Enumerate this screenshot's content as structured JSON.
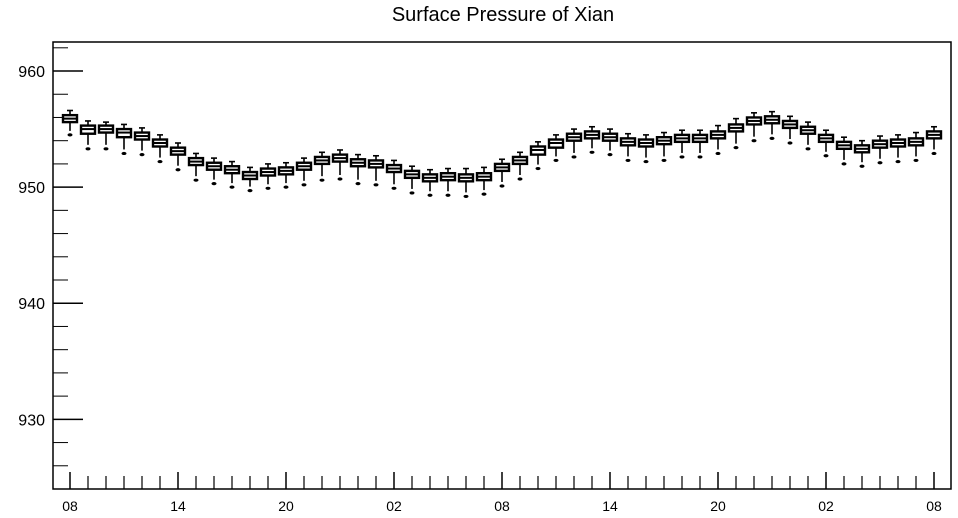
{
  "chart_data": {
    "type": "boxplot",
    "title": "Surface Pressure of Xian",
    "xlabel": "",
    "ylabel": "",
    "ylim": [
      924,
      962.5
    ],
    "y_ticks": [
      930,
      940,
      950,
      960
    ],
    "y_tick_labels": [
      "930",
      "940",
      "950",
      "960"
    ],
    "x_tick_labels": [
      "08",
      "14",
      "20",
      "02",
      "08",
      "14",
      "20",
      "02",
      "08"
    ],
    "x_tick_label_hours": [
      0,
      6,
      12,
      18,
      24,
      30,
      36,
      42,
      48
    ],
    "x_range_hours": [
      0,
      48
    ],
    "grid": false,
    "series": [
      {
        "boxes": [
          {
            "hour": 0,
            "min": 954.5,
            "q1": 955.6,
            "median": 955.9,
            "q3": 956.2,
            "max": 956.6
          },
          {
            "hour": 1,
            "min": 953.3,
            "q1": 954.6,
            "median": 955.0,
            "q3": 955.3,
            "max": 955.7
          },
          {
            "hour": 2,
            "min": 953.3,
            "q1": 954.7,
            "median": 955.0,
            "q3": 955.3,
            "max": 955.6
          },
          {
            "hour": 3,
            "min": 952.9,
            "q1": 954.3,
            "median": 954.7,
            "q3": 955.0,
            "max": 955.4
          },
          {
            "hour": 4,
            "min": 952.8,
            "q1": 954.1,
            "median": 954.4,
            "q3": 954.7,
            "max": 955.1
          },
          {
            "hour": 5,
            "min": 952.2,
            "q1": 953.5,
            "median": 953.8,
            "q3": 954.1,
            "max": 954.5
          },
          {
            "hour": 6,
            "min": 951.5,
            "q1": 952.8,
            "median": 953.1,
            "q3": 953.4,
            "max": 953.8
          },
          {
            "hour": 7,
            "min": 950.6,
            "q1": 951.9,
            "median": 952.2,
            "q3": 952.5,
            "max": 952.9
          },
          {
            "hour": 8,
            "min": 950.3,
            "q1": 951.5,
            "median": 951.8,
            "q3": 952.1,
            "max": 952.5
          },
          {
            "hour": 9,
            "min": 950.0,
            "q1": 951.2,
            "median": 951.5,
            "q3": 951.8,
            "max": 952.2
          },
          {
            "hour": 10,
            "min": 949.7,
            "q1": 950.7,
            "median": 951.0,
            "q3": 951.3,
            "max": 951.7
          },
          {
            "hour": 11,
            "min": 949.9,
            "q1": 951.0,
            "median": 951.3,
            "q3": 951.6,
            "max": 952.0
          },
          {
            "hour": 12,
            "min": 950.0,
            "q1": 951.1,
            "median": 951.4,
            "q3": 951.7,
            "max": 952.1
          },
          {
            "hour": 13,
            "min": 950.2,
            "q1": 951.5,
            "median": 951.8,
            "q3": 952.1,
            "max": 952.5
          },
          {
            "hour": 14,
            "min": 950.6,
            "q1": 952.0,
            "median": 952.3,
            "q3": 952.6,
            "max": 953.0
          },
          {
            "hour": 15,
            "min": 950.7,
            "q1": 952.2,
            "median": 952.5,
            "q3": 952.8,
            "max": 953.2
          },
          {
            "hour": 16,
            "min": 950.3,
            "q1": 951.8,
            "median": 952.1,
            "q3": 952.4,
            "max": 952.8
          },
          {
            "hour": 17,
            "min": 950.2,
            "q1": 951.7,
            "median": 952.0,
            "q3": 952.3,
            "max": 952.7
          },
          {
            "hour": 18,
            "min": 949.9,
            "q1": 951.3,
            "median": 951.6,
            "q3": 951.9,
            "max": 952.3
          },
          {
            "hour": 19,
            "min": 949.5,
            "q1": 950.8,
            "median": 951.1,
            "q3": 951.4,
            "max": 951.8
          },
          {
            "hour": 20,
            "min": 949.3,
            "q1": 950.5,
            "median": 950.8,
            "q3": 951.1,
            "max": 951.5
          },
          {
            "hour": 21,
            "min": 949.3,
            "q1": 950.6,
            "median": 950.9,
            "q3": 951.2,
            "max": 951.6
          },
          {
            "hour": 22,
            "min": 949.2,
            "q1": 950.5,
            "median": 950.8,
            "q3": 951.1,
            "max": 951.6
          },
          {
            "hour": 23,
            "min": 949.4,
            "q1": 950.6,
            "median": 950.9,
            "q3": 951.2,
            "max": 951.7
          },
          {
            "hour": 24,
            "min": 950.1,
            "q1": 951.4,
            "median": 951.7,
            "q3": 952.0,
            "max": 952.4
          },
          {
            "hour": 25,
            "min": 950.7,
            "q1": 952.0,
            "median": 952.3,
            "q3": 952.6,
            "max": 953.0
          },
          {
            "hour": 26,
            "min": 951.6,
            "q1": 952.8,
            "median": 953.2,
            "q3": 953.5,
            "max": 953.9
          },
          {
            "hour": 27,
            "min": 952.3,
            "q1": 953.4,
            "median": 953.8,
            "q3": 954.1,
            "max": 954.5
          },
          {
            "hour": 28,
            "min": 952.6,
            "q1": 954.0,
            "median": 954.3,
            "q3": 954.6,
            "max": 955.0
          },
          {
            "hour": 29,
            "min": 953.0,
            "q1": 954.2,
            "median": 954.5,
            "q3": 954.8,
            "max": 955.2
          },
          {
            "hour": 30,
            "min": 952.8,
            "q1": 954.0,
            "median": 954.3,
            "q3": 954.6,
            "max": 955.0
          },
          {
            "hour": 31,
            "min": 952.3,
            "q1": 953.6,
            "median": 953.9,
            "q3": 954.2,
            "max": 954.6
          },
          {
            "hour": 32,
            "min": 952.2,
            "q1": 953.5,
            "median": 953.8,
            "q3": 954.1,
            "max": 954.5
          },
          {
            "hour": 33,
            "min": 952.3,
            "q1": 953.7,
            "median": 954.0,
            "q3": 954.3,
            "max": 954.7
          },
          {
            "hour": 34,
            "min": 952.6,
            "q1": 953.9,
            "median": 954.2,
            "q3": 954.5,
            "max": 954.9
          },
          {
            "hour": 35,
            "min": 952.6,
            "q1": 953.9,
            "median": 954.2,
            "q3": 954.5,
            "max": 954.9
          },
          {
            "hour": 36,
            "min": 952.9,
            "q1": 954.2,
            "median": 954.5,
            "q3": 954.8,
            "max": 955.3
          },
          {
            "hour": 37,
            "min": 953.4,
            "q1": 954.8,
            "median": 955.1,
            "q3": 955.4,
            "max": 955.9
          },
          {
            "hour": 38,
            "min": 954.0,
            "q1": 955.4,
            "median": 955.7,
            "q3": 956.0,
            "max": 956.4
          },
          {
            "hour": 39,
            "min": 954.2,
            "q1": 955.5,
            "median": 955.8,
            "q3": 956.1,
            "max": 956.5
          },
          {
            "hour": 40,
            "min": 953.8,
            "q1": 955.1,
            "median": 955.4,
            "q3": 955.7,
            "max": 956.1
          },
          {
            "hour": 41,
            "min": 953.3,
            "q1": 954.6,
            "median": 954.9,
            "q3": 955.2,
            "max": 955.6
          },
          {
            "hour": 42,
            "min": 952.7,
            "q1": 953.9,
            "median": 954.2,
            "q3": 954.5,
            "max": 954.9
          },
          {
            "hour": 43,
            "min": 952.0,
            "q1": 953.3,
            "median": 953.6,
            "q3": 953.9,
            "max": 954.3
          },
          {
            "hour": 44,
            "min": 951.8,
            "q1": 953.0,
            "median": 953.3,
            "q3": 953.6,
            "max": 954.0
          },
          {
            "hour": 45,
            "min": 952.1,
            "q1": 953.4,
            "median": 953.7,
            "q3": 954.0,
            "max": 954.4
          },
          {
            "hour": 46,
            "min": 952.2,
            "q1": 953.5,
            "median": 953.8,
            "q3": 954.1,
            "max": 954.5
          },
          {
            "hour": 47,
            "min": 952.3,
            "q1": 953.6,
            "median": 953.9,
            "q3": 954.2,
            "max": 954.7
          },
          {
            "hour": 48,
            "min": 952.9,
            "q1": 954.2,
            "median": 954.5,
            "q3": 954.8,
            "max": 955.2
          }
        ]
      }
    ]
  }
}
